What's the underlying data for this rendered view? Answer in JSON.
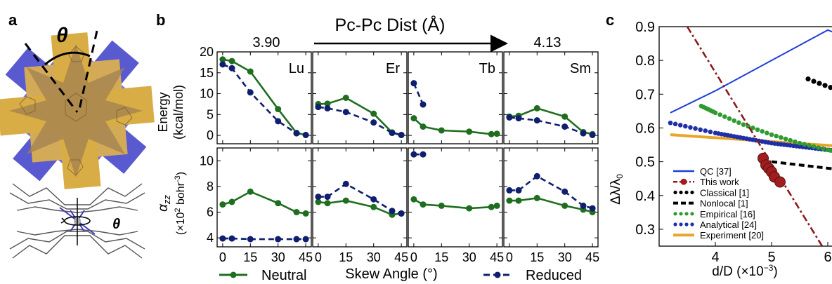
{
  "panel_letters": {
    "a": "a",
    "b": "b",
    "c": "c"
  },
  "panel_a": {
    "theta_top": "θ",
    "theta_bottom": "θ"
  },
  "panel_b": {
    "header": "Pc-Pc Dist (Å)",
    "left_value": "3.90",
    "right_value": "4.13",
    "xlabel": "Skew Angle (°)",
    "ylabel_top_1": "Energy",
    "ylabel_top_2": "(kcal/mol)",
    "ylabel_bottom_1": "α",
    "ylabel_bottom_sub": "zz",
    "ylabel_bottom_2": "(×10",
    "ylabel_bottom_sup": "2",
    "ylabel_bottom_3": " bohr",
    "ylabel_bottom_sup2": "-3",
    "ylabel_bottom_4": ")",
    "legend_neutral": "Neutral",
    "legend_reduced": "Reduced",
    "colors": {
      "neutral": "#1f6e1f",
      "reduced": "#0f1e6e"
    }
  },
  "panel_c": {
    "ylabel_1": "Δλ/λ",
    "ylabel_sub": "0",
    "xlabel_1": "d/D (×10",
    "xlabel_sup": "−3",
    "xlabel_2": ")",
    "legend": [
      {
        "label": "QC [37]",
        "color": "#1f3fd6",
        "style": "solid"
      },
      {
        "label": "This work",
        "color": "#8b1a1a",
        "style": "dashdot"
      },
      {
        "label": "Classical [1]",
        "color": "#000000",
        "style": "dotted"
      },
      {
        "label": "Nonlocal [1]",
        "color": "#000000",
        "style": "dashed"
      },
      {
        "label": "Empirical [16]",
        "color": "#2f9a2f",
        "style": "dotted"
      },
      {
        "label": "Analytical [24]",
        "color": "#1f2fa8",
        "style": "dotted"
      },
      {
        "label": "Experiment [20]",
        "color": "#e8a52a",
        "style": "solid"
      }
    ]
  },
  "chart_data": [
    {
      "type": "line",
      "panel": "b",
      "title": "Pc-Pc Dist (Å)",
      "xlabel": "Skew Angle (°)",
      "xlim": [
        -3,
        48
      ],
      "xticks": [
        0,
        15,
        30,
        45
      ],
      "rows": [
        {
          "ylabel": "Energy (kcal/mol)",
          "ylim": [
            -2,
            20
          ],
          "yticks": [
            0,
            5,
            10,
            15,
            20
          ]
        },
        {
          "ylabel": "αzz (×10² bohr⁻³)",
          "ylim": [
            3.3,
            11
          ],
          "yticks": [
            4,
            6,
            8,
            10
          ]
        }
      ],
      "subplots": [
        {
          "element": "Lu",
          "row": 0,
          "series": [
            {
              "name": "Neutral",
              "x": [
                0,
                5,
                15,
                30,
                40,
                45
              ],
              "y": [
                18.2,
                17.8,
                15.3,
                6.3,
                0.6,
                0.1
              ]
            },
            {
              "name": "Reduced",
              "x": [
                0,
                5,
                15,
                30,
                40,
                45
              ],
              "y": [
                17.0,
                16.1,
                10.3,
                3.4,
                0.5,
                0.1
              ]
            }
          ]
        },
        {
          "element": "Er",
          "row": 0,
          "series": [
            {
              "name": "Neutral",
              "x": [
                0,
                5,
                15,
                30,
                40,
                45
              ],
              "y": [
                7.5,
                7.6,
                9.0,
                5.2,
                0.7,
                0.1
              ]
            },
            {
              "name": "Reduced",
              "x": [
                0,
                5,
                15,
                30,
                40,
                45
              ],
              "y": [
                6.8,
                6.5,
                5.6,
                3.1,
                0.6,
                0.1
              ]
            }
          ]
        },
        {
          "element": "Tb",
          "row": 0,
          "series": [
            {
              "name": "Neutral",
              "x": [
                0,
                5,
                15,
                30,
                42,
                45
              ],
              "y": [
                4.1,
                2.1,
                1.2,
                0.9,
                0.3,
                0.4
              ]
            },
            {
              "name": "Reduced",
              "x": [
                0,
                5
              ],
              "y": [
                12.5,
                7.4
              ]
            }
          ]
        },
        {
          "element": "Sm",
          "row": 0,
          "series": [
            {
              "name": "Neutral",
              "x": [
                0,
                5,
                15,
                30,
                40,
                45
              ],
              "y": [
                4.5,
                4.7,
                6.5,
                4.5,
                0.8,
                0.3
              ]
            },
            {
              "name": "Reduced",
              "x": [
                0,
                5,
                15,
                30,
                40,
                45
              ],
              "y": [
                4.3,
                4.1,
                3.6,
                2.1,
                0.5,
                0.1
              ]
            }
          ]
        },
        {
          "element": "Lu",
          "row": 1,
          "series": [
            {
              "name": "Neutral",
              "x": [
                0,
                5,
                15,
                30,
                40,
                45
              ],
              "y": [
                6.6,
                6.8,
                7.6,
                6.7,
                6.0,
                5.9
              ]
            },
            {
              "name": "Reduced",
              "x": [
                0,
                5,
                15,
                30,
                40,
                45
              ],
              "y": [
                3.95,
                3.95,
                3.9,
                3.9,
                3.9,
                3.9
              ]
            }
          ]
        },
        {
          "element": "Er",
          "row": 1,
          "series": [
            {
              "name": "Neutral",
              "x": [
                0,
                5,
                15,
                30,
                40,
                45
              ],
              "y": [
                6.8,
                6.7,
                6.9,
                6.4,
                5.8,
                5.9
              ]
            },
            {
              "name": "Reduced",
              "x": [
                0,
                5,
                15,
                30,
                40,
                45
              ],
              "y": [
                7.2,
                7.2,
                8.2,
                7.0,
                6.1,
                5.9
              ]
            }
          ]
        },
        {
          "element": "Tb",
          "row": 1,
          "series": [
            {
              "name": "Neutral",
              "x": [
                0,
                5,
                15,
                30,
                42,
                45
              ],
              "y": [
                7.0,
                6.6,
                6.5,
                6.3,
                6.4,
                6.5
              ]
            },
            {
              "name": "Reduced",
              "x": [
                0,
                5
              ],
              "y": [
                10.5,
                10.5
              ]
            }
          ]
        },
        {
          "element": "Sm",
          "row": 1,
          "series": [
            {
              "name": "Neutral",
              "x": [
                0,
                5,
                15,
                30,
                40,
                45
              ],
              "y": [
                6.9,
                6.9,
                7.1,
                6.5,
                6.2,
                6.0
              ]
            },
            {
              "name": "Reduced",
              "x": [
                0,
                5,
                15,
                30,
                40,
                45
              ],
              "y": [
                7.7,
                7.7,
                8.8,
                7.6,
                6.5,
                6.3
              ]
            }
          ]
        }
      ]
    },
    {
      "type": "line",
      "panel": "c",
      "xlabel": "d/D (×10⁻³)",
      "ylabel": "Δλ/λ0",
      "xlim": [
        3.2,
        6.3
      ],
      "ylim": [
        0.25,
        0.9
      ],
      "xticks": [
        4,
        5,
        6
      ],
      "yticks": [
        0.3,
        0.4,
        0.5,
        0.6,
        0.7,
        0.8,
        0.9
      ],
      "series": [
        {
          "name": "QC [37]",
          "x": [
            3.2,
            4.0,
            6.0,
            6.3
          ],
          "y": [
            0.645,
            0.71,
            0.89,
            0.87
          ]
        },
        {
          "name": "This work",
          "x": [
            4.85,
            4.9,
            4.95,
            5.0,
            5.05,
            5.15
          ],
          "y": [
            0.51,
            0.49,
            0.48,
            0.47,
            0.455,
            0.44
          ]
        },
        {
          "name": "This work fit",
          "x": [
            3.5,
            5.9
          ],
          "y": [
            0.9,
            0.25
          ]
        },
        {
          "name": "Classical [1]",
          "x": [
            5.65,
            5.75,
            5.85,
            5.95,
            6.05
          ],
          "y": [
            0.745,
            0.738,
            0.732,
            0.726,
            0.72
          ]
        },
        {
          "name": "Nonlocal [1]",
          "x": [
            5.0,
            6.3
          ],
          "y": [
            0.5,
            0.475
          ]
        },
        {
          "name": "Empirical [16]",
          "x": [
            3.75,
            4.0,
            4.5,
            5.0,
            5.5,
            6.0,
            6.3
          ],
          "y": [
            0.665,
            0.645,
            0.61,
            0.58,
            0.555,
            0.535,
            0.525
          ]
        },
        {
          "name": "Analytical [24]",
          "x": [
            3.2,
            4.0,
            4.5,
            5.0,
            5.5,
            6.0,
            6.3
          ],
          "y": [
            0.615,
            0.585,
            0.57,
            0.555,
            0.545,
            0.535,
            0.53
          ]
        },
        {
          "name": "Experiment [20]",
          "x": [
            3.2,
            6.3
          ],
          "y": [
            0.58,
            0.545
          ]
        }
      ]
    }
  ]
}
